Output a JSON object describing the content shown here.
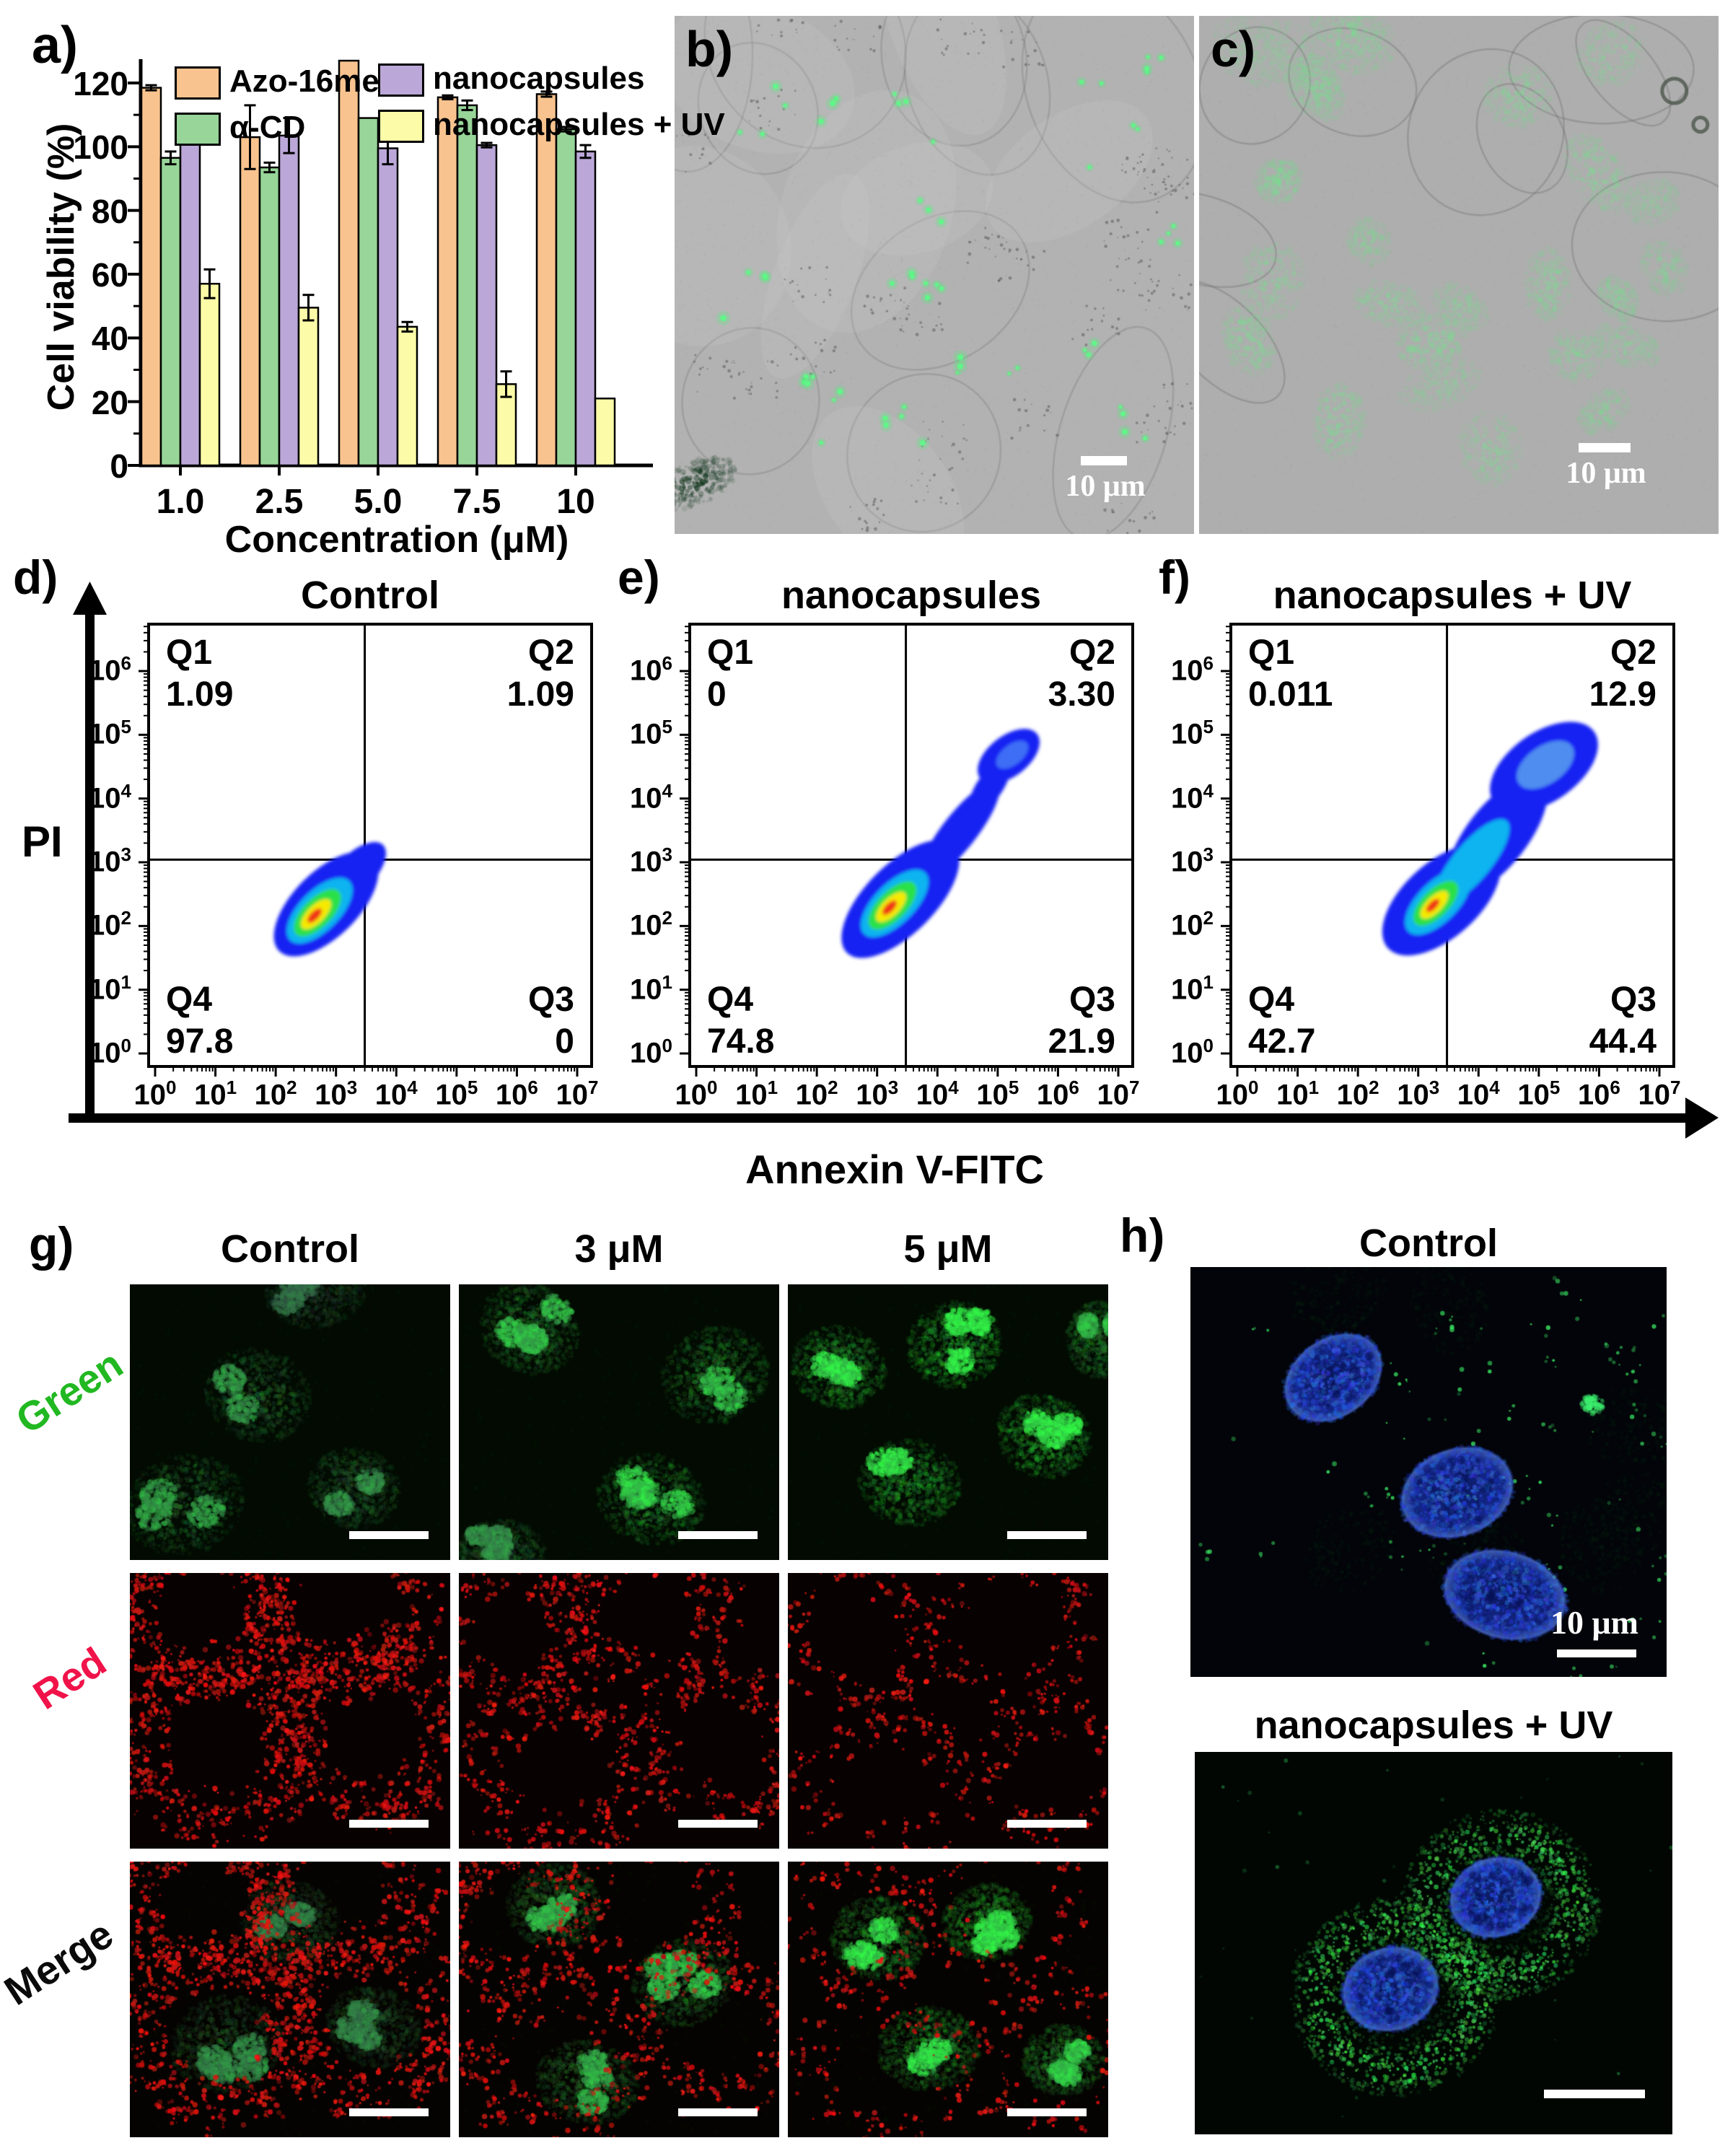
{
  "panel_a": {
    "label": "a)"
  },
  "panel_b": {
    "label": "b)",
    "scale_bar_label": "10 μm"
  },
  "panel_c": {
    "label": "c)",
    "scale_bar_label": "10 μm"
  },
  "flow": {
    "xlabel": "Annexin V-FITC",
    "ylabel": "PI",
    "x_tick_exponents": [
      0,
      1,
      2,
      3,
      4,
      5,
      6,
      7
    ],
    "y_tick_exponents": [
      0,
      1,
      2,
      3,
      4,
      5,
      6
    ],
    "panels": [
      {
        "label": "d)",
        "title": "Control",
        "quadrants": [
          {
            "name": "Q1",
            "value": "1.09"
          },
          {
            "name": "Q2",
            "value": "1.09"
          },
          {
            "name": "Q3",
            "value": "0"
          },
          {
            "name": "Q4",
            "value": "97.8"
          }
        ]
      },
      {
        "label": "e)",
        "title": "nanocapsules",
        "quadrants": [
          {
            "name": "Q1",
            "value": "0"
          },
          {
            "name": "Q2",
            "value": "3.30"
          },
          {
            "name": "Q3",
            "value": "21.9"
          },
          {
            "name": "Q4",
            "value": "74.8"
          }
        ]
      },
      {
        "label": "f)",
        "title": "nanocapsules + UV",
        "quadrants": [
          {
            "name": "Q1",
            "value": "0.011"
          },
          {
            "name": "Q2",
            "value": "12.9"
          },
          {
            "name": "Q3",
            "value": "44.4"
          },
          {
            "name": "Q4",
            "value": "42.7"
          }
        ]
      }
    ]
  },
  "panel_g": {
    "label": "g)",
    "column_titles": [
      "Control",
      "3 μM",
      "5 μM"
    ],
    "row_labels": [
      {
        "text": "Green",
        "color": "#21b821"
      },
      {
        "text": "Red",
        "color": "#f01349"
      },
      {
        "text": "Merge",
        "color": "#0a0a0a"
      }
    ]
  },
  "panel_h": {
    "label": "h)",
    "top_title": "Control",
    "bottom_title": "nanocapsules + UV",
    "scale_bar_label": "10 μm"
  },
  "chart_data": [
    {
      "type": "bar",
      "title": "",
      "xlabel": "Concentration (μM)",
      "ylabel": "Cell viability (%)",
      "categories": [
        "1.0",
        "2.5",
        "5.0",
        "7.5",
        "10"
      ],
      "series": [
        {
          "name": "Azo-16mer",
          "color": "#F8C38E",
          "values": [
            118.5,
            103,
            127,
            115.5,
            116.5
          ],
          "errors": [
            0.8,
            10,
            0,
            0.6,
            0.8
          ]
        },
        {
          "name": "α-CD",
          "color": "#97D598",
          "values": [
            96.5,
            93.5,
            109,
            113,
            105.5
          ],
          "errors": [
            2,
            1.5,
            0,
            1.5,
            0.7
          ]
        },
        {
          "name": "nanocapsules",
          "color": "#BBA7D8",
          "values": [
            108.5,
            103.5,
            99.5,
            100.5,
            98.5
          ],
          "errors": [
            1.5,
            5.5,
            5,
            0.7,
            2
          ]
        },
        {
          "name": "nanocapsules + UV",
          "color": "#FCFCA8",
          "values": [
            57,
            49.5,
            43.5,
            25.5,
            21
          ],
          "errors": [
            4.5,
            4,
            1.5,
            4,
            0
          ]
        }
      ],
      "yticks": [
        0,
        20,
        40,
        60,
        80,
        100,
        120
      ],
      "ylim": [
        0,
        135
      ],
      "grid": false,
      "legend_position": "top"
    },
    {
      "type": "density-scatter",
      "title": "Control",
      "xlabel": "Annexin V-FITC",
      "ylabel": "PI",
      "x_log_range": [
        0,
        7
      ],
      "y_log_range": [
        0,
        6.7
      ],
      "quadrant_percent": {
        "Q1": 1.09,
        "Q2": 1.09,
        "Q3": 0,
        "Q4": 97.8
      },
      "gate_x": 3000,
      "gate_y": 1100
    },
    {
      "type": "density-scatter",
      "title": "nanocapsules",
      "xlabel": "Annexin V-FITC",
      "ylabel": "PI",
      "x_log_range": [
        0,
        7
      ],
      "y_log_range": [
        0,
        6.7
      ],
      "quadrant_percent": {
        "Q1": 0,
        "Q2": 3.3,
        "Q3": 21.9,
        "Q4": 74.8
      },
      "gate_x": 3000,
      "gate_y": 1100
    },
    {
      "type": "density-scatter",
      "title": "nanocapsules + UV",
      "xlabel": "Annexin V-FITC",
      "ylabel": "PI",
      "x_log_range": [
        0,
        7
      ],
      "y_log_range": [
        0,
        6.7
      ],
      "quadrant_percent": {
        "Q1": 0.011,
        "Q2": 12.9,
        "Q3": 44.4,
        "Q4": 42.7
      },
      "gate_x": 3000,
      "gate_y": 1100
    }
  ]
}
